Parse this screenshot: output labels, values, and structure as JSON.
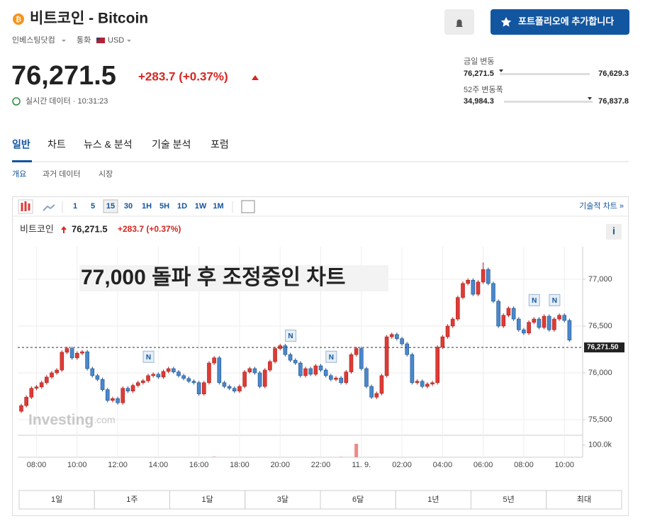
{
  "header": {
    "title": "비트코인 - Bitcoin",
    "source": "인베스팅닷컴",
    "currency_label": "통화",
    "currency": "USD",
    "portfolio_button": "포트폴리오에 추가합니다"
  },
  "quote": {
    "price": "76,271.5",
    "change": "+283.7 (+0.37%)",
    "realtime": "실시간 데이터 · 10:31:23",
    "day_range": {
      "label": "금일 변동",
      "low": "76,271.5",
      "high": "76,629.3"
    },
    "week52_range": {
      "label": "52주 변동폭",
      "low": "34,984.3",
      "high": "76,837.8"
    }
  },
  "tabs": [
    "일반",
    "차트",
    "뉴스 & 분석",
    "기술 분석",
    "포럼"
  ],
  "subtabs": [
    "개요",
    "과거 데이터",
    "시장"
  ],
  "toolbar": {
    "intervals": [
      "1",
      "5",
      "15",
      "30",
      "1H",
      "5H",
      "1D",
      "1W",
      "1M"
    ],
    "selected_interval": 2,
    "link": "기술적 차트 »"
  },
  "chart": {
    "type": "candlestick",
    "name": "비트코인",
    "price": "76,271.5",
    "change": "+283.7 (+0.37%)",
    "annotation": "77,000 돌파 후 조정중인 차트",
    "watermark": [
      "Investing",
      ".com"
    ],
    "up_color": "#de3b36",
    "down_color": "#4a88cc",
    "grid": true,
    "xlim": [
      -0.7,
      110.6
    ],
    "ylim": [
      75333,
      77348
    ],
    "xticks": [
      {
        "value": 3,
        "label": "08:00"
      },
      {
        "value": 11,
        "label": "10:00"
      },
      {
        "value": 19,
        "label": "12:00"
      },
      {
        "value": 27,
        "label": "14:00"
      },
      {
        "value": 35,
        "label": "16:00"
      },
      {
        "value": 43,
        "label": "18:00"
      },
      {
        "value": 51,
        "label": "20:00"
      },
      {
        "value": 59,
        "label": "22:00"
      },
      {
        "value": 67,
        "label": "11. 9."
      },
      {
        "value": 75,
        "label": "02:00"
      },
      {
        "value": 83,
        "label": "04:00"
      },
      {
        "value": 91,
        "label": "06:00"
      },
      {
        "value": 99,
        "label": "08:00"
      },
      {
        "value": 107,
        "label": "10:00"
      }
    ],
    "yticks": [
      {
        "value": 77000,
        "label": "77,000"
      },
      {
        "value": 76500,
        "label": "76,500"
      },
      {
        "value": 76000,
        "label": "76,000"
      },
      {
        "value": 75500,
        "label": "75,500"
      }
    ],
    "last_price": {
      "value": 76271.5,
      "label": "76,271.50"
    },
    "open": [
      75590,
      75650,
      75740,
      75835,
      75850,
      75895,
      75955,
      76000,
      76030,
      76220,
      76260,
      76160,
      76210,
      76225,
      76045,
      75970,
      75930,
      75820,
      75705,
      75725,
      75680,
      75835,
      75805,
      75865,
      75895,
      75915,
      75970,
      75985,
      75955,
      76015,
      76045,
      76010,
      75970,
      75940,
      75910,
      75895,
      75775,
      75895,
      76105,
      76160,
      75895,
      75855,
      75835,
      75805,
      75855,
      76010,
      76045,
      76000,
      75855,
      76030,
      76120,
      76260,
      76290,
      76195,
      76135,
      76105,
      75970,
      76045,
      75985,
      76075,
      76030,
      75970,
      75930,
      75945,
      75895,
      76010,
      76195,
      76260,
      76045,
      75855,
      75740,
      75780,
      75970,
      76385,
      76410,
      76365,
      76310,
      76195,
      75895,
      75910,
      75855,
      75880,
      75895,
      76275,
      76385,
      76500,
      76575,
      76805,
      76955,
      76990,
      76840,
      76970,
      77105,
      76955,
      76765,
      76500,
      76615,
      76690,
      76575,
      76460,
      76425,
      76540,
      76575,
      76485,
      76605,
      76460,
      76575,
      76615,
      76560
    ],
    "high": [
      75670,
      75760,
      75855,
      75870,
      75915,
      75975,
      76020,
      76050,
      76240,
      76280,
      76280,
      76230,
      76245,
      76245,
      76065,
      75990,
      75950,
      75840,
      75745,
      75745,
      75855,
      75855,
      75885,
      75915,
      75935,
      75990,
      76005,
      76005,
      76035,
      76065,
      76065,
      76030,
      75990,
      75960,
      75930,
      75915,
      75915,
      76125,
      76180,
      76180,
      75915,
      75875,
      75855,
      75875,
      76030,
      76065,
      76065,
      76020,
      76050,
      76140,
      76280,
      76310,
      76310,
      76215,
      76155,
      76125,
      76065,
      76065,
      76095,
      76095,
      76050,
      75990,
      75965,
      75965,
      76030,
      76215,
      76280,
      76280,
      76065,
      75875,
      75800,
      75990,
      76405,
      76430,
      76430,
      76385,
      76330,
      76215,
      75930,
      75930,
      75900,
      75915,
      76295,
      76405,
      76520,
      76595,
      76825,
      76975,
      77010,
      77010,
      76990,
      77180,
      77125,
      76975,
      76785,
      76635,
      76710,
      76710,
      76595,
      76480,
      76560,
      76595,
      76595,
      76625,
      76625,
      76595,
      76635,
      76635,
      76580
    ],
    "low": [
      75570,
      75630,
      75720,
      75815,
      75830,
      75875,
      75935,
      75980,
      76010,
      76200,
      76140,
      76140,
      76190,
      76025,
      75950,
      75910,
      75800,
      75685,
      75685,
      75660,
      75660,
      75785,
      75785,
      75845,
      75875,
      75895,
      75950,
      75935,
      75935,
      75995,
      75990,
      75950,
      75920,
      75890,
      75875,
      75755,
      75755,
      75875,
      76085,
      75875,
      75835,
      75815,
      75785,
      75785,
      75835,
      75990,
      75980,
      75835,
      75835,
      76010,
      76100,
      76240,
      76175,
      76115,
      76085,
      75950,
      75950,
      75965,
      75965,
      76010,
      75950,
      75910,
      75910,
      75875,
      75875,
      75990,
      76175,
      76025,
      75835,
      75720,
      75720,
      75760,
      75950,
      76365,
      76345,
      76290,
      76175,
      75875,
      75875,
      75835,
      75835,
      75860,
      75875,
      76255,
      76365,
      76480,
      76555,
      76785,
      76935,
      76820,
      76820,
      76950,
      76935,
      76745,
      76480,
      76480,
      76595,
      76555,
      76440,
      76405,
      76405,
      76520,
      76465,
      76465,
      76440,
      76440,
      76555,
      76540,
      76330
    ],
    "close": [
      75650,
      75740,
      75835,
      75850,
      75895,
      75955,
      76000,
      76030,
      76220,
      76260,
      76160,
      76210,
      76225,
      76045,
      75970,
      75930,
      75820,
      75705,
      75725,
      75680,
      75835,
      75805,
      75865,
      75895,
      75915,
      75970,
      75985,
      75955,
      76015,
      76045,
      76010,
      75970,
      75940,
      75910,
      75895,
      75775,
      75895,
      76105,
      76160,
      75895,
      75855,
      75835,
      75805,
      75855,
      76010,
      76045,
      76000,
      75855,
      76030,
      76120,
      76260,
      76290,
      76195,
      76135,
      76105,
      75970,
      76045,
      75985,
      76075,
      76030,
      75970,
      75930,
      75945,
      75895,
      76010,
      76195,
      76260,
      76045,
      75855,
      75740,
      75780,
      75970,
      76385,
      76410,
      76365,
      76310,
      76195,
      75895,
      75910,
      75855,
      75880,
      75895,
      76275,
      76385,
      76500,
      76575,
      76805,
      76955,
      76990,
      76840,
      76970,
      77105,
      76955,
      76765,
      76500,
      76615,
      76690,
      76575,
      76460,
      76425,
      76540,
      76575,
      76485,
      76605,
      76460,
      76575,
      76615,
      76560,
      76350
    ],
    "volume": {
      "x": [
        38,
        63,
        66
      ],
      "values": [
        4000,
        3000,
        110000
      ],
      "ylim": [
        0,
        180000
      ],
      "yticks": [
        {
          "value": 100000,
          "label": "100.0k"
        }
      ]
    },
    "news": {
      "x": [
        25,
        53,
        61,
        101,
        105
      ],
      "labels": [
        "N",
        "N",
        "N",
        "N",
        "N"
      ]
    },
    "ranges": [
      "1일",
      "1주",
      "1달",
      "3달",
      "6달",
      "1년",
      "5년",
      "최대"
    ]
  }
}
